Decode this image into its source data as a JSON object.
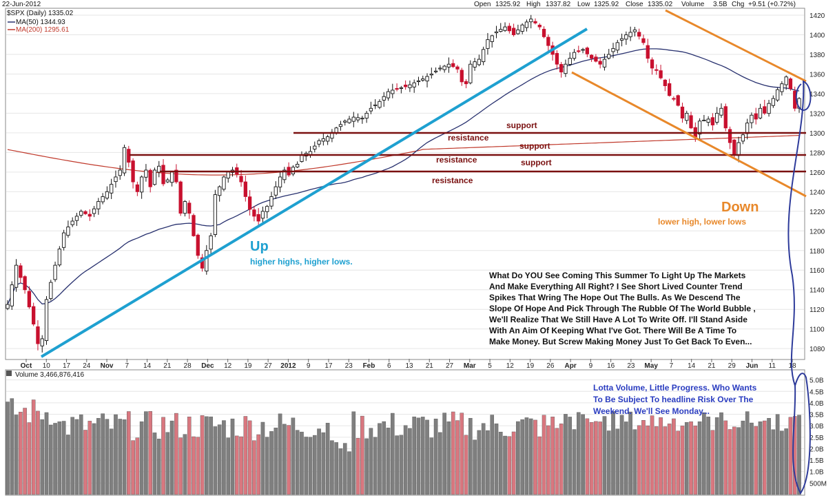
{
  "header": {
    "date": "22-Jun-2012",
    "symbol": "$SPX (Daily) 1335.02",
    "ma50": "MA(50) 1344.93",
    "ma200": "MA(200) 1295.61",
    "open_label": "Open",
    "open": "1325.92",
    "high_label": "High",
    "high": "1337.82",
    "low_label": "Low",
    "low": "1325.92",
    "close_label": "Close",
    "close": "1335.02",
    "volume_label": "Volume",
    "volume": "3.5B",
    "chg_label": "Chg",
    "chg": "+9.51 (+0.72%)",
    "volume_panel_label": "Volume 3,466,876,416"
  },
  "colors": {
    "up_candle": "#111111",
    "down_candle": "#c8102e",
    "ma50": "#27306e",
    "ma200": "#c0392b",
    "uptrend": "#1ea0d0",
    "downchannel": "#e8882a",
    "levels": "#7a1010",
    "vol_up": "#7f7f7f",
    "vol_down": "#d9777f",
    "circle": "#2d3a9a"
  },
  "annotations": {
    "up_title": "Up",
    "up_sub": "higher highs, higher lows.",
    "down_title": "Down",
    "down_sub": "lower high, lower lows",
    "levels": [
      {
        "label": "support",
        "price": 1300
      },
      {
        "label": "resistance",
        "price": 1300
      },
      {
        "label": "support",
        "price": 1278
      },
      {
        "label": "resistance",
        "price": 1278
      },
      {
        "label": "support",
        "price": 1261
      },
      {
        "label": "resistance",
        "price": 1261
      }
    ],
    "commentary": [
      "What Do YOU See Coming This Summer To Light Up The Markets",
      "And Make Everything All Right? I See Short Lived Counter Trend",
      "Spikes That Wring The Hope Out The Bulls.  As We Descend The",
      "Slope Of Hope And Pick Through The Rubble Of The World Bubble ,",
      "We'll Realize That We Still Have A Lot To Write Off.  I'll Stand Aside",
      "With An Aim Of Keeping What I've Got. There Will Be A Time To",
      "Make Money. But Screw Making Money Just To Get Back To Even..."
    ],
    "volume_note": [
      "Lotta Volume, Little Progress. Who Wants",
      "To Be Subject To headline Risk Over The",
      "Weekend. We'll See Monday..."
    ]
  },
  "chart_data": [
    {
      "type": "candlestick",
      "title": "$SPX (Daily) 1335.02",
      "ylim": [
        1060,
        1425
      ],
      "y_ticks": [
        1080,
        1100,
        1120,
        1140,
        1160,
        1180,
        1200,
        1220,
        1240,
        1260,
        1280,
        1300,
        1320,
        1340,
        1360,
        1380,
        1400,
        1420
      ],
      "x_ticks": [
        "Oct",
        "10",
        "17",
        "24",
        "Nov",
        "7",
        "14",
        "21",
        "28",
        "Dec",
        "12",
        "19",
        "27",
        "2012",
        "9",
        "17",
        "23",
        "Feb",
        "6",
        "13",
        "21",
        "27",
        "Mar",
        "5",
        "12",
        "19",
        "26",
        "Apr",
        "9",
        "16",
        "23",
        "May",
        "7",
        "14",
        "21",
        "29",
        "Jun",
        "11",
        "18"
      ],
      "bold_ticks": [
        "Oct",
        "Nov",
        "Dec",
        "2012",
        "Feb",
        "Mar",
        "Apr",
        "May",
        "Jun"
      ],
      "close_path": [
        [
          0,
          1125
        ],
        [
          2,
          1165
        ],
        [
          4,
          1140
        ],
        [
          6,
          1105
        ],
        [
          7,
          1085
        ],
        [
          8,
          1090
        ],
        [
          9,
          1130
        ],
        [
          11,
          1165
        ],
        [
          13,
          1198
        ],
        [
          15,
          1210
        ],
        [
          17,
          1220
        ],
        [
          19,
          1215
        ],
        [
          21,
          1230
        ],
        [
          23,
          1240
        ],
        [
          25,
          1255
        ],
        [
          26,
          1262
        ],
        [
          27,
          1285
        ],
        [
          28,
          1270
        ],
        [
          29,
          1250
        ],
        [
          30,
          1240
        ],
        [
          31,
          1255
        ],
        [
          32,
          1262
        ],
        [
          33,
          1245
        ],
        [
          34,
          1262
        ],
        [
          35,
          1266
        ],
        [
          36,
          1248
        ],
        [
          37,
          1252
        ],
        [
          38,
          1260
        ],
        [
          39,
          1250
        ],
        [
          40,
          1218
        ],
        [
          41,
          1230
        ],
        [
          42,
          1218
        ],
        [
          43,
          1195
        ],
        [
          44,
          1175
        ],
        [
          45,
          1162
        ],
        [
          46,
          1180
        ],
        [
          47,
          1195
        ],
        [
          48,
          1237
        ],
        [
          49,
          1245
        ],
        [
          50,
          1255
        ],
        [
          51,
          1260
        ],
        [
          52,
          1262
        ],
        [
          53,
          1258
        ],
        [
          54,
          1250
        ],
        [
          55,
          1235
        ],
        [
          56,
          1222
        ],
        [
          57,
          1215
        ],
        [
          58,
          1210
        ],
        [
          59,
          1220
        ],
        [
          60,
          1225
        ],
        [
          61,
          1235
        ],
        [
          62,
          1245
        ],
        [
          63,
          1255
        ],
        [
          64,
          1262
        ],
        [
          65,
          1257
        ],
        [
          66,
          1265
        ],
        [
          67,
          1268
        ],
        [
          68,
          1277
        ],
        [
          70,
          1281
        ],
        [
          72,
          1292
        ],
        [
          74,
          1296
        ],
        [
          76,
          1305
        ],
        [
          78,
          1312
        ],
        [
          80,
          1316
        ],
        [
          82,
          1315
        ],
        [
          84,
          1325
        ],
        [
          86,
          1332
        ],
        [
          88,
          1342
        ],
        [
          90,
          1345
        ],
        [
          92,
          1347
        ],
        [
          94,
          1351
        ],
        [
          96,
          1355
        ],
        [
          98,
          1360
        ],
        [
          100,
          1366
        ],
        [
          102,
          1370
        ],
        [
          104,
          1365
        ],
        [
          105,
          1352
        ],
        [
          106,
          1350
        ],
        [
          107,
          1370
        ],
        [
          109,
          1375
        ],
        [
          111,
          1395
        ],
        [
          113,
          1403
        ],
        [
          115,
          1408
        ],
        [
          117,
          1400
        ],
        [
          119,
          1410
        ],
        [
          121,
          1416
        ],
        [
          123,
          1408
        ],
        [
          124,
          1398
        ],
        [
          126,
          1380
        ],
        [
          127,
          1370
        ],
        [
          128,
          1362
        ],
        [
          129,
          1370
        ],
        [
          131,
          1382
        ],
        [
          133,
          1385
        ],
        [
          135,
          1376
        ],
        [
          137,
          1370
        ],
        [
          139,
          1380
        ],
        [
          141,
          1392
        ],
        [
          143,
          1400
        ],
        [
          145,
          1405
        ],
        [
          147,
          1392
        ],
        [
          148,
          1376
        ],
        [
          149,
          1366
        ],
        [
          150,
          1364
        ],
        [
          151,
          1356
        ],
        [
          152,
          1348
        ],
        [
          153,
          1338
        ],
        [
          154,
          1335
        ],
        [
          155,
          1328
        ],
        [
          156,
          1315
        ],
        [
          157,
          1320
        ],
        [
          158,
          1305
        ],
        [
          159,
          1296
        ],
        [
          160,
          1312
        ],
        [
          162,
          1314
        ],
        [
          163,
          1308
        ],
        [
          164,
          1320
        ],
        [
          165,
          1325
        ],
        [
          166,
          1305
        ],
        [
          167,
          1290
        ],
        [
          168,
          1278
        ],
        [
          169,
          1290
        ],
        [
          170,
          1298
        ],
        [
          171,
          1310
        ],
        [
          172,
          1318
        ],
        [
          173,
          1314
        ],
        [
          174,
          1325
        ],
        [
          175,
          1320
        ],
        [
          176,
          1330
        ],
        [
          177,
          1335
        ],
        [
          178,
          1344
        ],
        [
          179,
          1350
        ],
        [
          180,
          1357
        ],
        [
          181,
          1345
        ],
        [
          182,
          1325
        ],
        [
          183,
          1335
        ]
      ]
    },
    {
      "type": "bar",
      "title": "Volume 3,466,876,416",
      "ylim": [
        0,
        5.2
      ],
      "y_ticks": [
        "500M",
        "1.0B",
        "1.5B",
        "2.0B",
        "2.5B",
        "3.0B",
        "3.5B",
        "4.0B",
        "4.5B",
        "5.0B"
      ],
      "last_value": 3466876416
    }
  ]
}
